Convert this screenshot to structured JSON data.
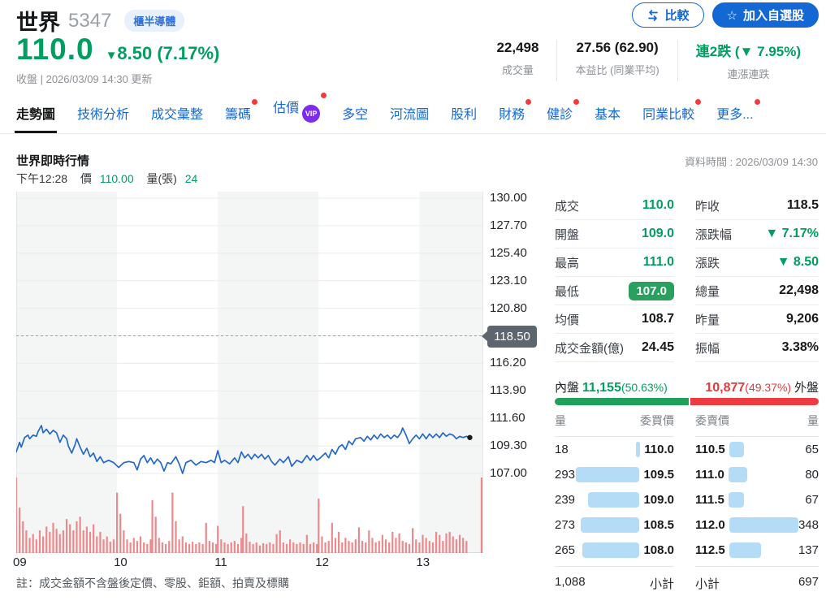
{
  "header": {
    "stock_name": "世界",
    "stock_code": "5347",
    "category_badge": "櫃半導體",
    "compare_button": "比較",
    "add_watchlist_button": "加入自選股",
    "price": "110.0",
    "change_arrow": "▼",
    "change_text": "8.50 (7.17%)",
    "status_line": "收盤 | 2026/03/09 14:30 更新",
    "stats": [
      {
        "value": "22,498",
        "label": "成交量",
        "green": false
      },
      {
        "value": "27.56 (62.90)",
        "label": "本益比 (同業平均)",
        "green": false
      },
      {
        "value": "連2跌 (▼ 7.95%)",
        "label": "連漲連跌",
        "green": true
      }
    ]
  },
  "tabs": [
    {
      "label": "走勢圖",
      "active": true,
      "dot": false,
      "vip": false
    },
    {
      "label": "技術分析",
      "active": false,
      "dot": false,
      "vip": false
    },
    {
      "label": "成交彙整",
      "active": false,
      "dot": false,
      "vip": false
    },
    {
      "label": "籌碼",
      "active": false,
      "dot": true,
      "vip": false
    },
    {
      "label": "估價",
      "active": false,
      "dot": true,
      "vip": true
    },
    {
      "label": "多空",
      "active": false,
      "dot": false,
      "vip": false
    },
    {
      "label": "河流圖",
      "active": false,
      "dot": false,
      "vip": false
    },
    {
      "label": "股利",
      "active": false,
      "dot": false,
      "vip": false
    },
    {
      "label": "財務",
      "active": false,
      "dot": true,
      "vip": false
    },
    {
      "label": "健診",
      "active": false,
      "dot": true,
      "vip": false
    },
    {
      "label": "基本",
      "active": false,
      "dot": false,
      "vip": false
    },
    {
      "label": "同業比較",
      "active": false,
      "dot": true,
      "vip": false
    },
    {
      "label": "更多...",
      "active": false,
      "dot": true,
      "vip": false
    }
  ],
  "chart_section": {
    "title": "世界即時行情",
    "data_time": "資料時間 : 2026/03/09 14:30",
    "crosshair": {
      "time": "下午12:28",
      "price_label": "價",
      "price": "110.00",
      "vol_label": "量(張)",
      "vol": "24"
    },
    "note": "註：成交金額不含盤後定價、零股、鉅額、拍賣及標購"
  },
  "chart_data": {
    "type": "line",
    "title": "世界即時行情 intraday price + volume",
    "ylim": [
      107.0,
      130.0
    ],
    "y_ticks": [
      "130.00",
      "127.70",
      "125.40",
      "123.10",
      "120.80",
      "118.50",
      "116.20",
      "113.90",
      "111.60",
      "109.30",
      "107.00"
    ],
    "x_ticks": [
      "09",
      "10",
      "11",
      "12",
      "13"
    ],
    "x_range_minutes": [
      0,
      278
    ],
    "prev_close": 118.5,
    "prev_close_label": "118.50",
    "open": 109.0,
    "high": 111.0,
    "low": 107.0,
    "close": 110.0,
    "price_series": [
      [
        0,
        108.8
      ],
      [
        2,
        109.6
      ],
      [
        3,
        109.2
      ],
      [
        5,
        110.0
      ],
      [
        7,
        110.2
      ],
      [
        8,
        109.9
      ],
      [
        10,
        110.2
      ],
      [
        12,
        110.1
      ],
      [
        13,
        110.5
      ],
      [
        15,
        111.0
      ],
      [
        16,
        110.4
      ],
      [
        18,
        110.7
      ],
      [
        20,
        110.3
      ],
      [
        22,
        110.6
      ],
      [
        24,
        110.4
      ],
      [
        26,
        109.6
      ],
      [
        28,
        110.2
      ],
      [
        30,
        109.9
      ],
      [
        31,
        109.3
      ],
      [
        33,
        108.7
      ],
      [
        35,
        109.4
      ],
      [
        36,
        109.9
      ],
      [
        38,
        109.2
      ],
      [
        40,
        108.6
      ],
      [
        42,
        109.1
      ],
      [
        44,
        108.4
      ],
      [
        46,
        108.7
      ],
      [
        48,
        108.0
      ],
      [
        50,
        108.4
      ],
      [
        52,
        107.9
      ],
      [
        55,
        108.1
      ],
      [
        58,
        107.9
      ],
      [
        61,
        107.5
      ],
      [
        64,
        107.9
      ],
      [
        67,
        108.0
      ],
      [
        70,
        107.9
      ],
      [
        72,
        107.3
      ],
      [
        74,
        108.2
      ],
      [
        76,
        108.5
      ],
      [
        78,
        107.9
      ],
      [
        80,
        108.3
      ],
      [
        82,
        107.8
      ],
      [
        84,
        108.2
      ],
      [
        86,
        107.9
      ],
      [
        88,
        107.2
      ],
      [
        90,
        107.9
      ],
      [
        92,
        107.8
      ],
      [
        95,
        108.4
      ],
      [
        97,
        107.8
      ],
      [
        99,
        107.0
      ],
      [
        101,
        107.9
      ],
      [
        104,
        108.1
      ],
      [
        107,
        107.7
      ],
      [
        110,
        108.0
      ],
      [
        113,
        107.9
      ],
      [
        116,
        108.1
      ],
      [
        118,
        107.9
      ],
      [
        120,
        108.9
      ],
      [
        122,
        107.9
      ],
      [
        124,
        108.1
      ],
      [
        127,
        107.8
      ],
      [
        130,
        108.3
      ],
      [
        132,
        107.9
      ],
      [
        134,
        108.8
      ],
      [
        136,
        108.3
      ],
      [
        138,
        108.6
      ],
      [
        140,
        108.2
      ],
      [
        142,
        108.6
      ],
      [
        144,
        108.3
      ],
      [
        146,
        108.6
      ],
      [
        148,
        108.2
      ],
      [
        150,
        108.5
      ],
      [
        152,
        108.0
      ],
      [
        154,
        107.7
      ],
      [
        157,
        108.2
      ],
      [
        159,
        107.9
      ],
      [
        162,
        108.4
      ],
      [
        164,
        107.6
      ],
      [
        167,
        108.1
      ],
      [
        170,
        107.9
      ],
      [
        173,
        108.5
      ],
      [
        175,
        108.1
      ],
      [
        177,
        108.5
      ],
      [
        179,
        108.1
      ],
      [
        181,
        108.3
      ],
      [
        184,
        108.7
      ],
      [
        186,
        108.3
      ],
      [
        188,
        109.0
      ],
      [
        190,
        108.6
      ],
      [
        192,
        109.2
      ],
      [
        194,
        109.4
      ],
      [
        196,
        109.0
      ],
      [
        198,
        109.7
      ],
      [
        200,
        109.4
      ],
      [
        202,
        109.9
      ],
      [
        205,
        110.0
      ],
      [
        207,
        109.7
      ],
      [
        209,
        110.1
      ],
      [
        211,
        109.8
      ],
      [
        213,
        110.2
      ],
      [
        215,
        109.9
      ],
      [
        217,
        110.3
      ],
      [
        219,
        110.0
      ],
      [
        221,
        110.2
      ],
      [
        223,
        109.9
      ],
      [
        225,
        110.2
      ],
      [
        227,
        110.0
      ],
      [
        229,
        110.4
      ],
      [
        230,
        110.8
      ],
      [
        232,
        110.2
      ],
      [
        234,
        109.5
      ],
      [
        236,
        109.9
      ],
      [
        238,
        110.2
      ],
      [
        240,
        109.9
      ],
      [
        242,
        110.3
      ],
      [
        244,
        109.9
      ],
      [
        246,
        110.3
      ],
      [
        248,
        110.0
      ],
      [
        250,
        110.3
      ],
      [
        252,
        110.0
      ],
      [
        254,
        110.4
      ],
      [
        256,
        110.1
      ],
      [
        258,
        110.3
      ],
      [
        260,
        110.2
      ],
      [
        262,
        109.9
      ],
      [
        264,
        110.1
      ],
      [
        266,
        110.0
      ],
      [
        268,
        110.1
      ],
      [
        270,
        110.0
      ]
    ],
    "volume_series": [
      [
        0,
        100
      ],
      [
        2,
        60
      ],
      [
        4,
        42
      ],
      [
        6,
        30
      ],
      [
        8,
        20
      ],
      [
        10,
        25
      ],
      [
        12,
        18
      ],
      [
        14,
        30
      ],
      [
        16,
        22
      ],
      [
        18,
        35
      ],
      [
        20,
        28
      ],
      [
        22,
        40
      ],
      [
        24,
        32
      ],
      [
        26,
        25
      ],
      [
        28,
        30
      ],
      [
        30,
        45
      ],
      [
        32,
        38
      ],
      [
        34,
        30
      ],
      [
        36,
        42
      ],
      [
        38,
        48
      ],
      [
        40,
        30
      ],
      [
        42,
        35
      ],
      [
        44,
        28
      ],
      [
        46,
        38
      ],
      [
        48,
        22
      ],
      [
        50,
        28
      ],
      [
        52,
        18
      ],
      [
        54,
        22
      ],
      [
        56,
        15
      ],
      [
        58,
        18
      ],
      [
        60,
        80
      ],
      [
        62,
        52
      ],
      [
        64,
        30
      ],
      [
        66,
        18
      ],
      [
        68,
        14
      ],
      [
        70,
        20
      ],
      [
        72,
        16
      ],
      [
        74,
        22
      ],
      [
        76,
        14
      ],
      [
        78,
        12
      ],
      [
        80,
        18
      ],
      [
        81,
        70
      ],
      [
        83,
        48
      ],
      [
        85,
        20
      ],
      [
        87,
        14
      ],
      [
        89,
        12
      ],
      [
        91,
        16
      ],
      [
        93,
        80
      ],
      [
        95,
        42
      ],
      [
        97,
        18
      ],
      [
        99,
        22
      ],
      [
        101,
        14
      ],
      [
        103,
        12
      ],
      [
        105,
        15
      ],
      [
        107,
        12
      ],
      [
        109,
        14
      ],
      [
        111,
        12
      ],
      [
        113,
        40
      ],
      [
        115,
        16
      ],
      [
        117,
        14
      ],
      [
        119,
        12
      ],
      [
        120,
        36
      ],
      [
        122,
        18
      ],
      [
        124,
        14
      ],
      [
        126,
        12
      ],
      [
        128,
        14
      ],
      [
        130,
        16
      ],
      [
        132,
        12
      ],
      [
        134,
        20
      ],
      [
        135,
        62
      ],
      [
        137,
        26
      ],
      [
        139,
        15
      ],
      [
        141,
        12
      ],
      [
        143,
        14
      ],
      [
        145,
        10
      ],
      [
        147,
        13
      ],
      [
        149,
        12
      ],
      [
        151,
        14
      ],
      [
        153,
        12
      ],
      [
        155,
        25
      ],
      [
        157,
        30
      ],
      [
        159,
        14
      ],
      [
        161,
        12
      ],
      [
        163,
        18
      ],
      [
        165,
        14
      ],
      [
        167,
        12
      ],
      [
        169,
        14
      ],
      [
        171,
        12
      ],
      [
        173,
        24
      ],
      [
        175,
        12
      ],
      [
        177,
        14
      ],
      [
        179,
        12
      ],
      [
        180,
        72
      ],
      [
        182,
        22
      ],
      [
        184,
        14
      ],
      [
        186,
        16
      ],
      [
        188,
        40
      ],
      [
        190,
        20
      ],
      [
        192,
        28
      ],
      [
        194,
        14
      ],
      [
        196,
        20
      ],
      [
        198,
        16
      ],
      [
        200,
        14
      ],
      [
        202,
        18
      ],
      [
        204,
        34
      ],
      [
        206,
        16
      ],
      [
        208,
        14
      ],
      [
        210,
        30
      ],
      [
        212,
        20
      ],
      [
        214,
        14
      ],
      [
        216,
        16
      ],
      [
        218,
        24
      ],
      [
        220,
        18
      ],
      [
        222,
        14
      ],
      [
        224,
        28
      ],
      [
        226,
        20
      ],
      [
        228,
        26
      ],
      [
        230,
        16
      ],
      [
        232,
        14
      ],
      [
        234,
        12
      ],
      [
        236,
        33
      ],
      [
        238,
        18
      ],
      [
        240,
        14
      ],
      [
        242,
        24
      ],
      [
        244,
        20
      ],
      [
        246,
        16
      ],
      [
        248,
        14
      ],
      [
        250,
        28
      ],
      [
        252,
        24
      ],
      [
        254,
        16
      ],
      [
        256,
        26
      ],
      [
        258,
        28
      ],
      [
        260,
        22
      ],
      [
        262,
        18
      ],
      [
        264,
        24
      ],
      [
        266,
        20
      ],
      [
        268,
        16
      ],
      [
        277,
        100
      ]
    ]
  },
  "quote_panel": {
    "left": [
      {
        "label": "成交",
        "value": "110.0",
        "style": "green"
      },
      {
        "label": "開盤",
        "value": "109.0",
        "style": "green"
      },
      {
        "label": "最高",
        "value": "111.0",
        "style": "green"
      },
      {
        "label": "最低",
        "value": "107.0",
        "style": "badge"
      },
      {
        "label": "均價",
        "value": "108.7",
        "style": ""
      },
      {
        "label": "成交金額(億)",
        "value": "24.45",
        "style": ""
      }
    ],
    "right": [
      {
        "label": "昨收",
        "value": "118.5",
        "style": ""
      },
      {
        "label": "漲跌幅",
        "value": "▼ 7.17%",
        "style": "green"
      },
      {
        "label": "漲跌",
        "value": "▼ 8.50",
        "style": "green"
      },
      {
        "label": "總量",
        "value": "22,498",
        "style": ""
      },
      {
        "label": "昨量",
        "value": "9,206",
        "style": ""
      },
      {
        "label": "振幅",
        "value": "3.38%",
        "style": ""
      }
    ]
  },
  "inner_outer": {
    "inner_label": "內盤",
    "inner_value": "11,155",
    "inner_pct": "(50.63%)",
    "outer_value": "10,877",
    "outer_pct": "(49.37%)",
    "outer_label": "外盤",
    "inner_ratio_pct": 50.63
  },
  "order_book": {
    "headers": {
      "buy_qty": "量",
      "buy_price": "委買價",
      "sell_price": "委賣價",
      "sell_qty": "量"
    },
    "buy": [
      {
        "qty": "18",
        "q": 18,
        "price": "110.0"
      },
      {
        "qty": "293",
        "q": 293,
        "price": "109.5"
      },
      {
        "qty": "239",
        "q": 239,
        "price": "109.0"
      },
      {
        "qty": "273",
        "q": 273,
        "price": "108.5"
      },
      {
        "qty": "265",
        "q": 265,
        "price": "108.0"
      }
    ],
    "sell": [
      {
        "price": "110.5",
        "q": 65,
        "qty": "65"
      },
      {
        "price": "111.0",
        "q": 80,
        "qty": "80"
      },
      {
        "price": "111.5",
        "q": 67,
        "qty": "67"
      },
      {
        "price": "112.0",
        "q": 348,
        "qty": "348"
      },
      {
        "price": "112.5",
        "q": 137,
        "qty": "137"
      }
    ],
    "subtotal_label": "小計",
    "buy_subtotal": "1,088",
    "sell_subtotal": "697"
  },
  "colors": {
    "green": "#009e60",
    "red": "#e5393d",
    "blue": "#1468d3",
    "line_blue": "#2368cb",
    "volume_bar": "#ea8a8d",
    "depth_bar": "#b5dcf6",
    "badge_green": "#2aa05f",
    "prev_close_badge": "#5d666f",
    "vip_purple": "#7b2ced",
    "notif_dot": "#f13b40"
  }
}
